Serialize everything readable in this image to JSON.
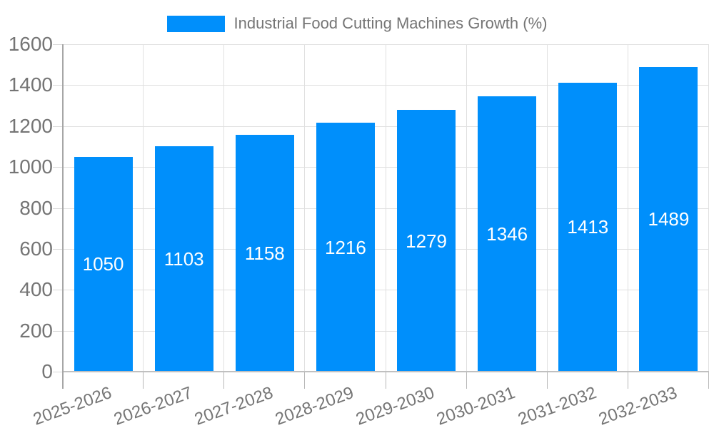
{
  "legend": {
    "label": "Industrial Food Cutting Machines Growth (%)"
  },
  "colors": {
    "bar": "#008FFB",
    "grid": "#e0e0e0",
    "axis_line": "#a6a6a6",
    "zero_line": "#c0c0c0",
    "tick": "#b8b8b8",
    "axis_text": "#757575",
    "value_label_text": "#ffffff",
    "background": "#ffffff"
  },
  "chart_data": {
    "type": "bar",
    "title": "Industrial Food Cutting Machines Growth (%)",
    "series": [
      {
        "name": "Industrial Food Cutting Machines Growth (%)",
        "values": [
          1050,
          1103,
          1158,
          1216,
          1279,
          1346,
          1413,
          1489
        ]
      }
    ],
    "categories": [
      "2025-2026",
      "2026-2027",
      "2027-2028",
      "2028-2029",
      "2029-2030",
      "2030-2031",
      "2031-2032",
      "2032-2033"
    ],
    "values": [
      1050,
      1103,
      1158,
      1216,
      1279,
      1346,
      1413,
      1489
    ],
    "value_labels_position": "inside-center",
    "xlabel": "",
    "ylabel": "",
    "ylim": [
      0,
      1600
    ],
    "yticks": [
      0,
      200,
      400,
      600,
      800,
      1000,
      1200,
      1400,
      1600
    ],
    "grid": true,
    "legend_position": "top-center",
    "x_label_rotation_deg": -20
  }
}
